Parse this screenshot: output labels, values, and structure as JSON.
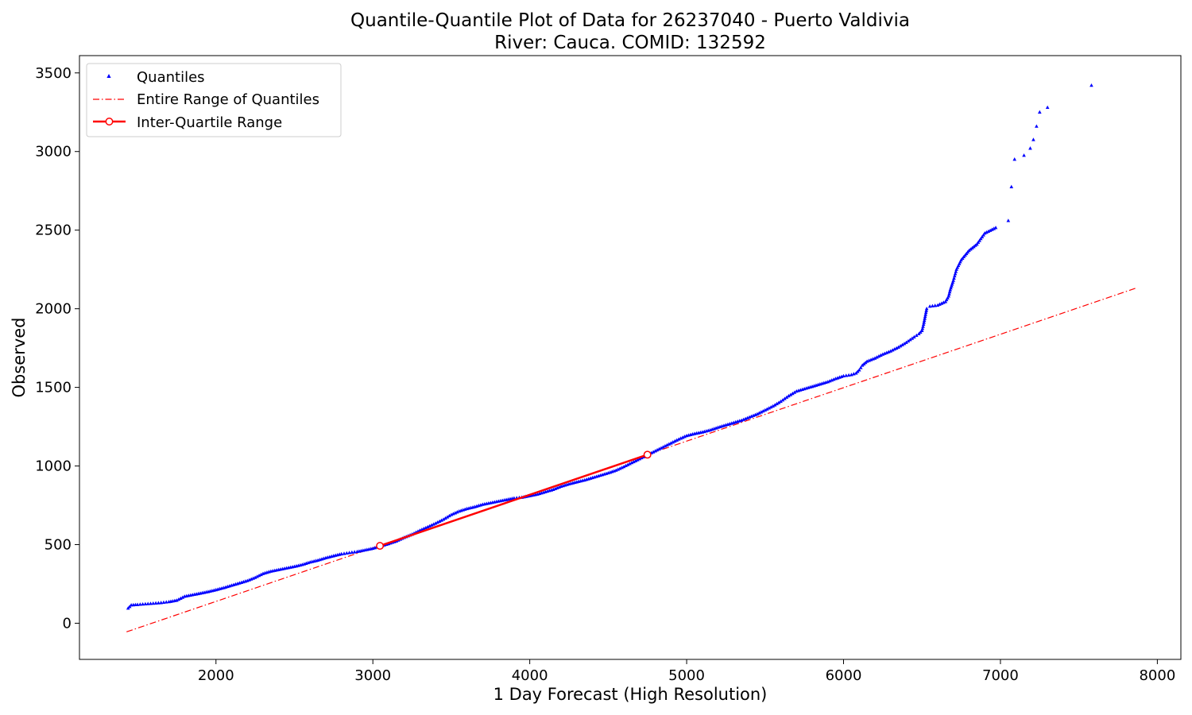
{
  "chart_data": {
    "type": "scatter",
    "title": "Quantile-Quantile Plot of Data for 26237040 - Puerto Valdivia",
    "subtitle": "River: Cauca. COMID: 132592",
    "xlabel": "1 Day Forecast (High Resolution)",
    "ylabel": "Observed",
    "xlim": [
      1130,
      8150
    ],
    "ylim": [
      -230,
      3610
    ],
    "xticks": [
      2000,
      3000,
      4000,
      5000,
      6000,
      7000,
      8000
    ],
    "yticks": [
      0,
      500,
      1000,
      1500,
      2000,
      2500,
      3000,
      3500
    ],
    "grid": false,
    "legend_position": "top-left",
    "colors": {
      "quantiles": "#0000ff",
      "entire_range": "#ff0000",
      "iqr": "#ff0000"
    },
    "series": [
      {
        "name": "Quantiles",
        "style": "markers",
        "marker": "triangle",
        "points": [
          [
            1440,
            95
          ],
          [
            1460,
            115
          ],
          [
            1500,
            118
          ],
          [
            1550,
            122
          ],
          [
            1600,
            126
          ],
          [
            1650,
            130
          ],
          [
            1700,
            136
          ],
          [
            1750,
            145
          ],
          [
            1800,
            170
          ],
          [
            1850,
            180
          ],
          [
            1900,
            190
          ],
          [
            1950,
            200
          ],
          [
            2000,
            212
          ],
          [
            2050,
            225
          ],
          [
            2100,
            240
          ],
          [
            2150,
            255
          ],
          [
            2200,
            270
          ],
          [
            2250,
            290
          ],
          [
            2300,
            315
          ],
          [
            2350,
            330
          ],
          [
            2400,
            340
          ],
          [
            2450,
            350
          ],
          [
            2500,
            360
          ],
          [
            2550,
            372
          ],
          [
            2600,
            388
          ],
          [
            2650,
            400
          ],
          [
            2700,
            415
          ],
          [
            2750,
            428
          ],
          [
            2800,
            440
          ],
          [
            2850,
            448
          ],
          [
            2900,
            455
          ],
          [
            2950,
            465
          ],
          [
            3000,
            475
          ],
          [
            3050,
            490
          ],
          [
            3100,
            505
          ],
          [
            3150,
            522
          ],
          [
            3200,
            545
          ],
          [
            3250,
            565
          ],
          [
            3300,
            590
          ],
          [
            3350,
            612
          ],
          [
            3400,
            635
          ],
          [
            3450,
            660
          ],
          [
            3500,
            690
          ],
          [
            3550,
            712
          ],
          [
            3600,
            728
          ],
          [
            3650,
            740
          ],
          [
            3700,
            755
          ],
          [
            3750,
            765
          ],
          [
            3800,
            775
          ],
          [
            3850,
            785
          ],
          [
            3900,
            795
          ],
          [
            3950,
            800
          ],
          [
            4000,
            810
          ],
          [
            4050,
            820
          ],
          [
            4100,
            835
          ],
          [
            4150,
            850
          ],
          [
            4200,
            870
          ],
          [
            4250,
            885
          ],
          [
            4300,
            898
          ],
          [
            4350,
            910
          ],
          [
            4400,
            925
          ],
          [
            4450,
            940
          ],
          [
            4500,
            955
          ],
          [
            4550,
            972
          ],
          [
            4600,
            995
          ],
          [
            4650,
            1020
          ],
          [
            4700,
            1045
          ],
          [
            4750,
            1070
          ],
          [
            4800,
            1095
          ],
          [
            4850,
            1120
          ],
          [
            4900,
            1145
          ],
          [
            4950,
            1170
          ],
          [
            5000,
            1192
          ],
          [
            5050,
            1205
          ],
          [
            5100,
            1215
          ],
          [
            5150,
            1228
          ],
          [
            5200,
            1245
          ],
          [
            5250,
            1260
          ],
          [
            5300,
            1275
          ],
          [
            5350,
            1290
          ],
          [
            5400,
            1310
          ],
          [
            5450,
            1330
          ],
          [
            5500,
            1355
          ],
          [
            5550,
            1380
          ],
          [
            5600,
            1410
          ],
          [
            5650,
            1445
          ],
          [
            5700,
            1475
          ],
          [
            5750,
            1490
          ],
          [
            5800,
            1505
          ],
          [
            5850,
            1520
          ],
          [
            5900,
            1535
          ],
          [
            5950,
            1555
          ],
          [
            6000,
            1572
          ],
          [
            6050,
            1580
          ],
          [
            6080,
            1590
          ],
          [
            6100,
            1610
          ],
          [
            6120,
            1640
          ],
          [
            6150,
            1665
          ],
          [
            6200,
            1685
          ],
          [
            6250,
            1710
          ],
          [
            6300,
            1730
          ],
          [
            6350,
            1755
          ],
          [
            6400,
            1785
          ],
          [
            6450,
            1820
          ],
          [
            6480,
            1840
          ],
          [
            6500,
            1860
          ],
          [
            6510,
            1900
          ],
          [
            6520,
            1950
          ],
          [
            6530,
            2000
          ],
          [
            6550,
            2015
          ],
          [
            6600,
            2022
          ],
          [
            6650,
            2045
          ],
          [
            6670,
            2080
          ],
          [
            6680,
            2120
          ],
          [
            6700,
            2180
          ],
          [
            6720,
            2250
          ],
          [
            6750,
            2310
          ],
          [
            6800,
            2370
          ],
          [
            6850,
            2410
          ],
          [
            6900,
            2480
          ],
          [
            6970,
            2515
          ],
          [
            7050,
            2560
          ],
          [
            7070,
            2775
          ],
          [
            7090,
            2950
          ],
          [
            7150,
            2975
          ],
          [
            7190,
            3020
          ],
          [
            7210,
            3075
          ],
          [
            7230,
            3160
          ],
          [
            7250,
            3250
          ],
          [
            7300,
            3280
          ],
          [
            7580,
            3420
          ]
        ]
      },
      {
        "name": "Entire Range of Quantiles",
        "style": "dashdot",
        "points": [
          [
            1430,
            -55
          ],
          [
            7860,
            2130
          ]
        ]
      },
      {
        "name": "Inter-Quartile Range",
        "style": "solid-with-circle-markers",
        "points": [
          [
            3045,
            492
          ],
          [
            4750,
            1072
          ]
        ]
      }
    ]
  }
}
